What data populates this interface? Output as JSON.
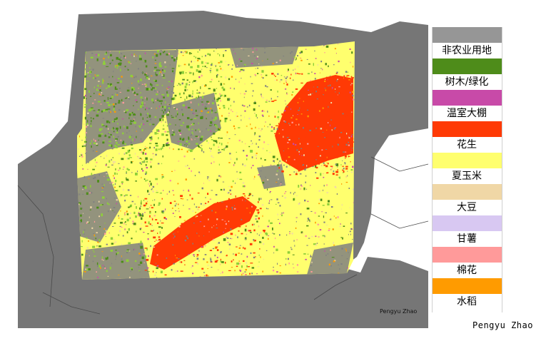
{
  "map": {
    "colors": {
      "ocean": "#ffffff",
      "land": "#767676",
      "boundary": "#4a4a4a",
      "non_agri": "#808080",
      "trees": "#4e8c1a",
      "lightgreen": "#8fcf3a",
      "greenhouse": "#c84aa8",
      "peanut": "#ff3a05",
      "corn": "#ffff6e",
      "soybean": "#f0d7a6",
      "sweetpotato": "#d8c8f2",
      "cotton": "#ff9a9a",
      "rice": "#ff9b00"
    },
    "inner_credit": "Pengyu Zhao"
  },
  "legend": {
    "items": [
      {
        "label": "非农业用地",
        "color": "#969696"
      },
      {
        "label": "树木/绿化",
        "color": "#4e8c1a"
      },
      {
        "label": "温室大棚",
        "color": "#c84aa8"
      },
      {
        "label": "花生",
        "color": "#ff3a05"
      },
      {
        "label": "夏玉米",
        "color": "#ffff6e"
      },
      {
        "label": "大豆",
        "color": "#f0d7a6"
      },
      {
        "label": "甘薯",
        "color": "#d8c8f2"
      },
      {
        "label": "棉花",
        "color": "#ff9a9a"
      },
      {
        "label": "水稻",
        "color": "#ff9b00"
      }
    ]
  },
  "credit": "Pengyu Zhao"
}
